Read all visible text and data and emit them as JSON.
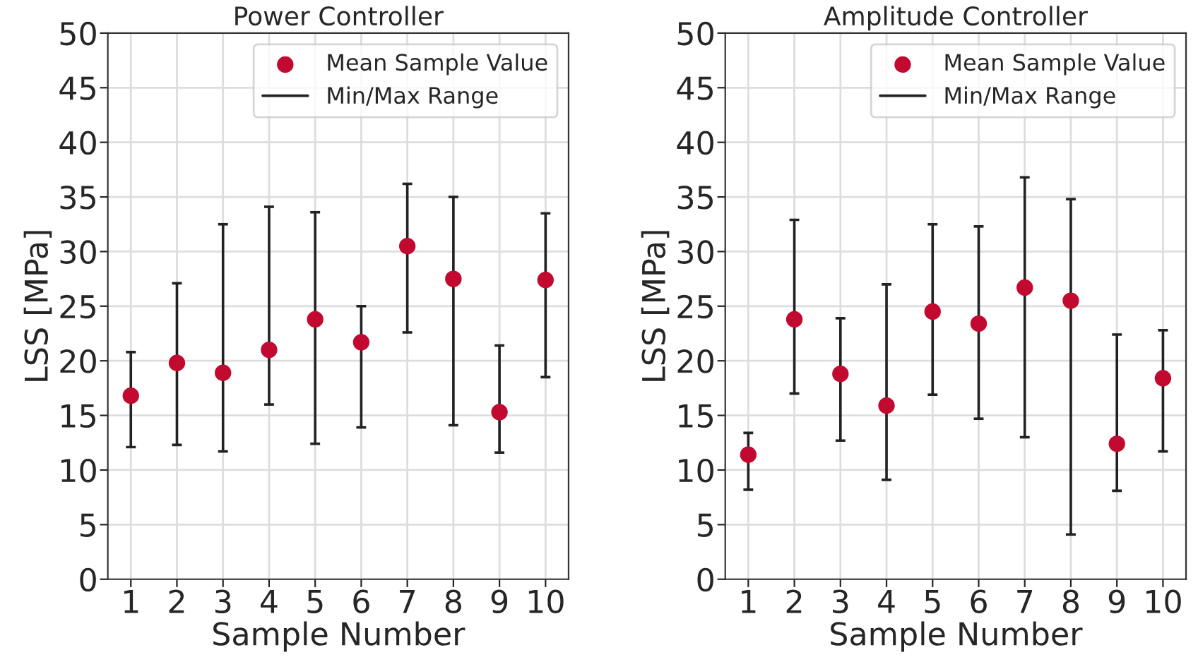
{
  "chart_data": [
    {
      "type": "scatter",
      "title": "Power Controller",
      "xlabel": "Sample Number",
      "ylabel": "LSS [MPa]",
      "categories": [
        "1",
        "2",
        "3",
        "4",
        "5",
        "6",
        "7",
        "8",
        "9",
        "10"
      ],
      "ylim": [
        0,
        50
      ],
      "yticks": [
        0,
        5,
        10,
        15,
        20,
        25,
        30,
        35,
        40,
        45,
        50
      ],
      "grid": true,
      "legend": "top right",
      "marker": "circle",
      "annotations": [
        "Min/Max Range"
      ],
      "series": [
        {
          "name": "Mean Sample Value",
          "color": "#c20a30",
          "values": [
            16.8,
            19.8,
            18.9,
            21.0,
            23.8,
            21.7,
            30.5,
            27.5,
            15.3,
            27.4
          ],
          "errors": [
            [
              12.1,
              20.8
            ],
            [
              12.3,
              27.1
            ],
            [
              11.7,
              32.5
            ],
            [
              16.0,
              34.1
            ],
            [
              12.4,
              33.6
            ],
            [
              13.9,
              25.0
            ],
            [
              22.6,
              36.2
            ],
            [
              14.1,
              35.0
            ],
            [
              11.6,
              21.4
            ],
            [
              18.5,
              33.5
            ]
          ]
        }
      ]
    },
    {
      "type": "scatter",
      "title": "Amplitude Controller",
      "xlabel": "Sample Number",
      "ylabel": "LSS [MPa]",
      "categories": [
        "1",
        "2",
        "3",
        "4",
        "5",
        "6",
        "7",
        "8",
        "9",
        "10"
      ],
      "ylim": [
        0,
        50
      ],
      "yticks": [
        0,
        5,
        10,
        15,
        20,
        25,
        30,
        35,
        40,
        45,
        50
      ],
      "grid": true,
      "legend": "top right",
      "marker": "circle",
      "annotations": [
        "Min/Max Range"
      ],
      "series": [
        {
          "name": "Mean Sample Value",
          "color": "#c20a30",
          "values": [
            11.4,
            23.8,
            18.8,
            15.9,
            24.5,
            23.4,
            26.7,
            25.5,
            12.4,
            18.4
          ],
          "errors": [
            [
              8.2,
              13.4
            ],
            [
              17.0,
              32.9
            ],
            [
              12.7,
              23.9
            ],
            [
              9.1,
              27.0
            ],
            [
              16.9,
              32.5
            ],
            [
              14.7,
              32.3
            ],
            [
              13.0,
              36.8
            ],
            [
              4.1,
              34.8
            ],
            [
              8.1,
              22.4
            ],
            [
              11.7,
              22.8
            ]
          ]
        }
      ]
    }
  ]
}
